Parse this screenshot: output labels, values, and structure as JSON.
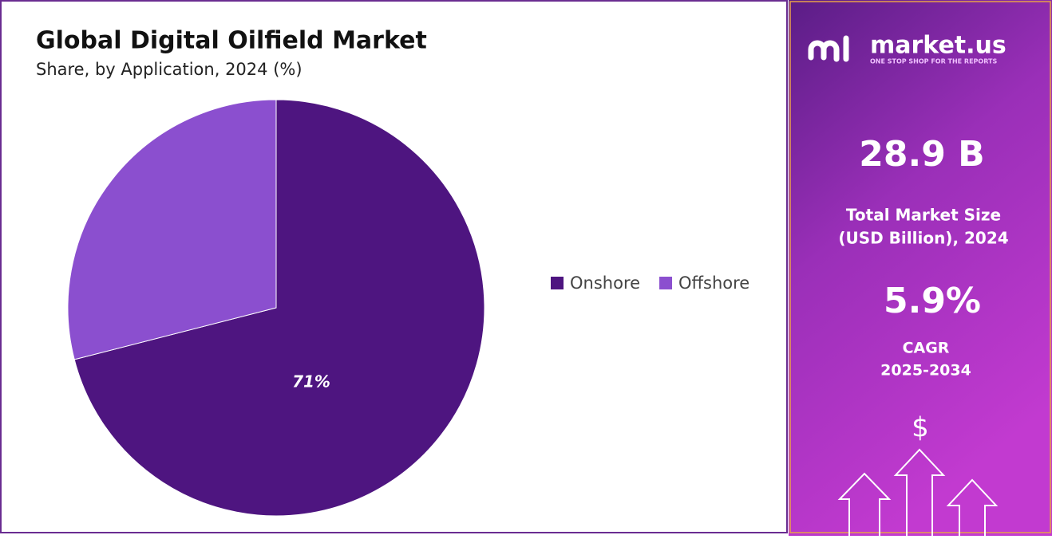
{
  "chart_data": {
    "type": "pie",
    "title": "Global Digital Oilfield Market",
    "subtitle": "Share, by Application, 2024 (%)",
    "categories": [
      "Onshore",
      "Offshore"
    ],
    "values": [
      71,
      29
    ],
    "value_labels": [
      "71%",
      null
    ],
    "colors": [
      "#4e1580",
      "#8b4fcf"
    ],
    "legend": "right"
  },
  "panel": {
    "brand": "market.us",
    "tagline": "ONE STOP SHOP FOR THE REPORTS",
    "market_size": "28.9  B",
    "market_size_label_1": "Total Market Size",
    "market_size_label_2": "(USD Billion), 2024",
    "cagr": "5.9%",
    "cagr_label_1": "CAGR",
    "cagr_label_2": "2025-2034",
    "icon": "$"
  }
}
